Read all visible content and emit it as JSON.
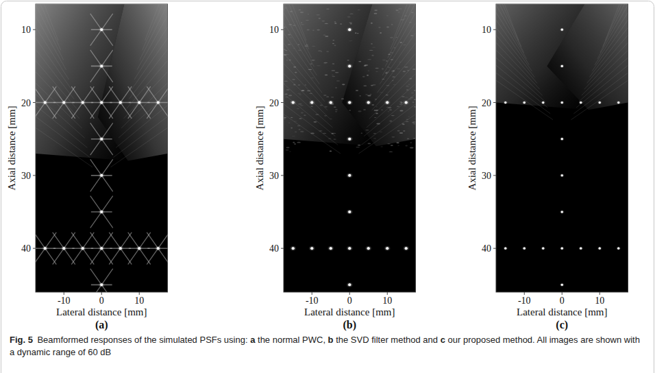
{
  "chart_data": [
    {
      "type": "scatter",
      "label": "(a)",
      "x_label": "Lateral distance [mm]",
      "y_label": "Axial distance [mm]",
      "xlim": [
        -17.5,
        17.5
      ],
      "ylim": [
        46,
        6.5
      ],
      "xticks": [
        -10,
        0,
        10
      ],
      "yticks": [
        10,
        20,
        30,
        40
      ],
      "x": [
        0,
        0,
        -15,
        -10,
        -5,
        0,
        5,
        10,
        15,
        0,
        0,
        0,
        -15,
        -10,
        -5,
        0,
        5,
        10,
        15,
        0
      ],
      "values": [
        10,
        15,
        20,
        20,
        20,
        20,
        20,
        20,
        20,
        25,
        30,
        35,
        40,
        40,
        40,
        40,
        40,
        40,
        40,
        45
      ],
      "color": "#ffffff"
    },
    {
      "type": "scatter",
      "label": "(b)",
      "x_label": "Lateral distance [mm]",
      "y_label": "Axial distance [mm]",
      "xlim": [
        -17.5,
        17.5
      ],
      "ylim": [
        46,
        6.5
      ],
      "xticks": [
        -10,
        0,
        10
      ],
      "yticks": [
        10,
        20,
        30,
        40
      ],
      "x": [
        0,
        0,
        -15,
        -10,
        -5,
        0,
        5,
        10,
        15,
        0,
        0,
        0,
        -15,
        -10,
        -5,
        0,
        5,
        10,
        15,
        0
      ],
      "values": [
        10,
        15,
        20,
        20,
        20,
        20,
        20,
        20,
        20,
        25,
        30,
        35,
        40,
        40,
        40,
        40,
        40,
        40,
        40,
        45
      ],
      "color": "#ffffff"
    },
    {
      "type": "scatter",
      "label": "(c)",
      "x_label": "Lateral distance [mm]",
      "y_label": "Axial distance [mm]",
      "xlim": [
        -17.5,
        17.5
      ],
      "ylim": [
        46,
        6.5
      ],
      "xticks": [
        -10,
        0,
        10
      ],
      "yticks": [
        10,
        20,
        30,
        40
      ],
      "x": [
        0,
        0,
        -15,
        -10,
        -5,
        0,
        5,
        10,
        15,
        0,
        0,
        0,
        -15,
        -10,
        -5,
        0,
        5,
        10,
        15,
        0
      ],
      "values": [
        10,
        15,
        20,
        20,
        20,
        20,
        20,
        20,
        20,
        25,
        30,
        35,
        40,
        40,
        40,
        40,
        40,
        40,
        40,
        45
      ],
      "color": "#ffffff"
    }
  ],
  "caption": {
    "label": "Fig. 5",
    "runs": [
      {
        "text": "Beamformed responses of the simulated PSFs using: "
      },
      {
        "text": "a",
        "bold": true
      },
      {
        "text": " the normal PWC, "
      },
      {
        "text": "b",
        "bold": true
      },
      {
        "text": " the SVD filter method and "
      },
      {
        "text": "c",
        "bold": true
      },
      {
        "text": " our proposed method. All images are shown with a dynamic range of 60 dB"
      }
    ]
  }
}
